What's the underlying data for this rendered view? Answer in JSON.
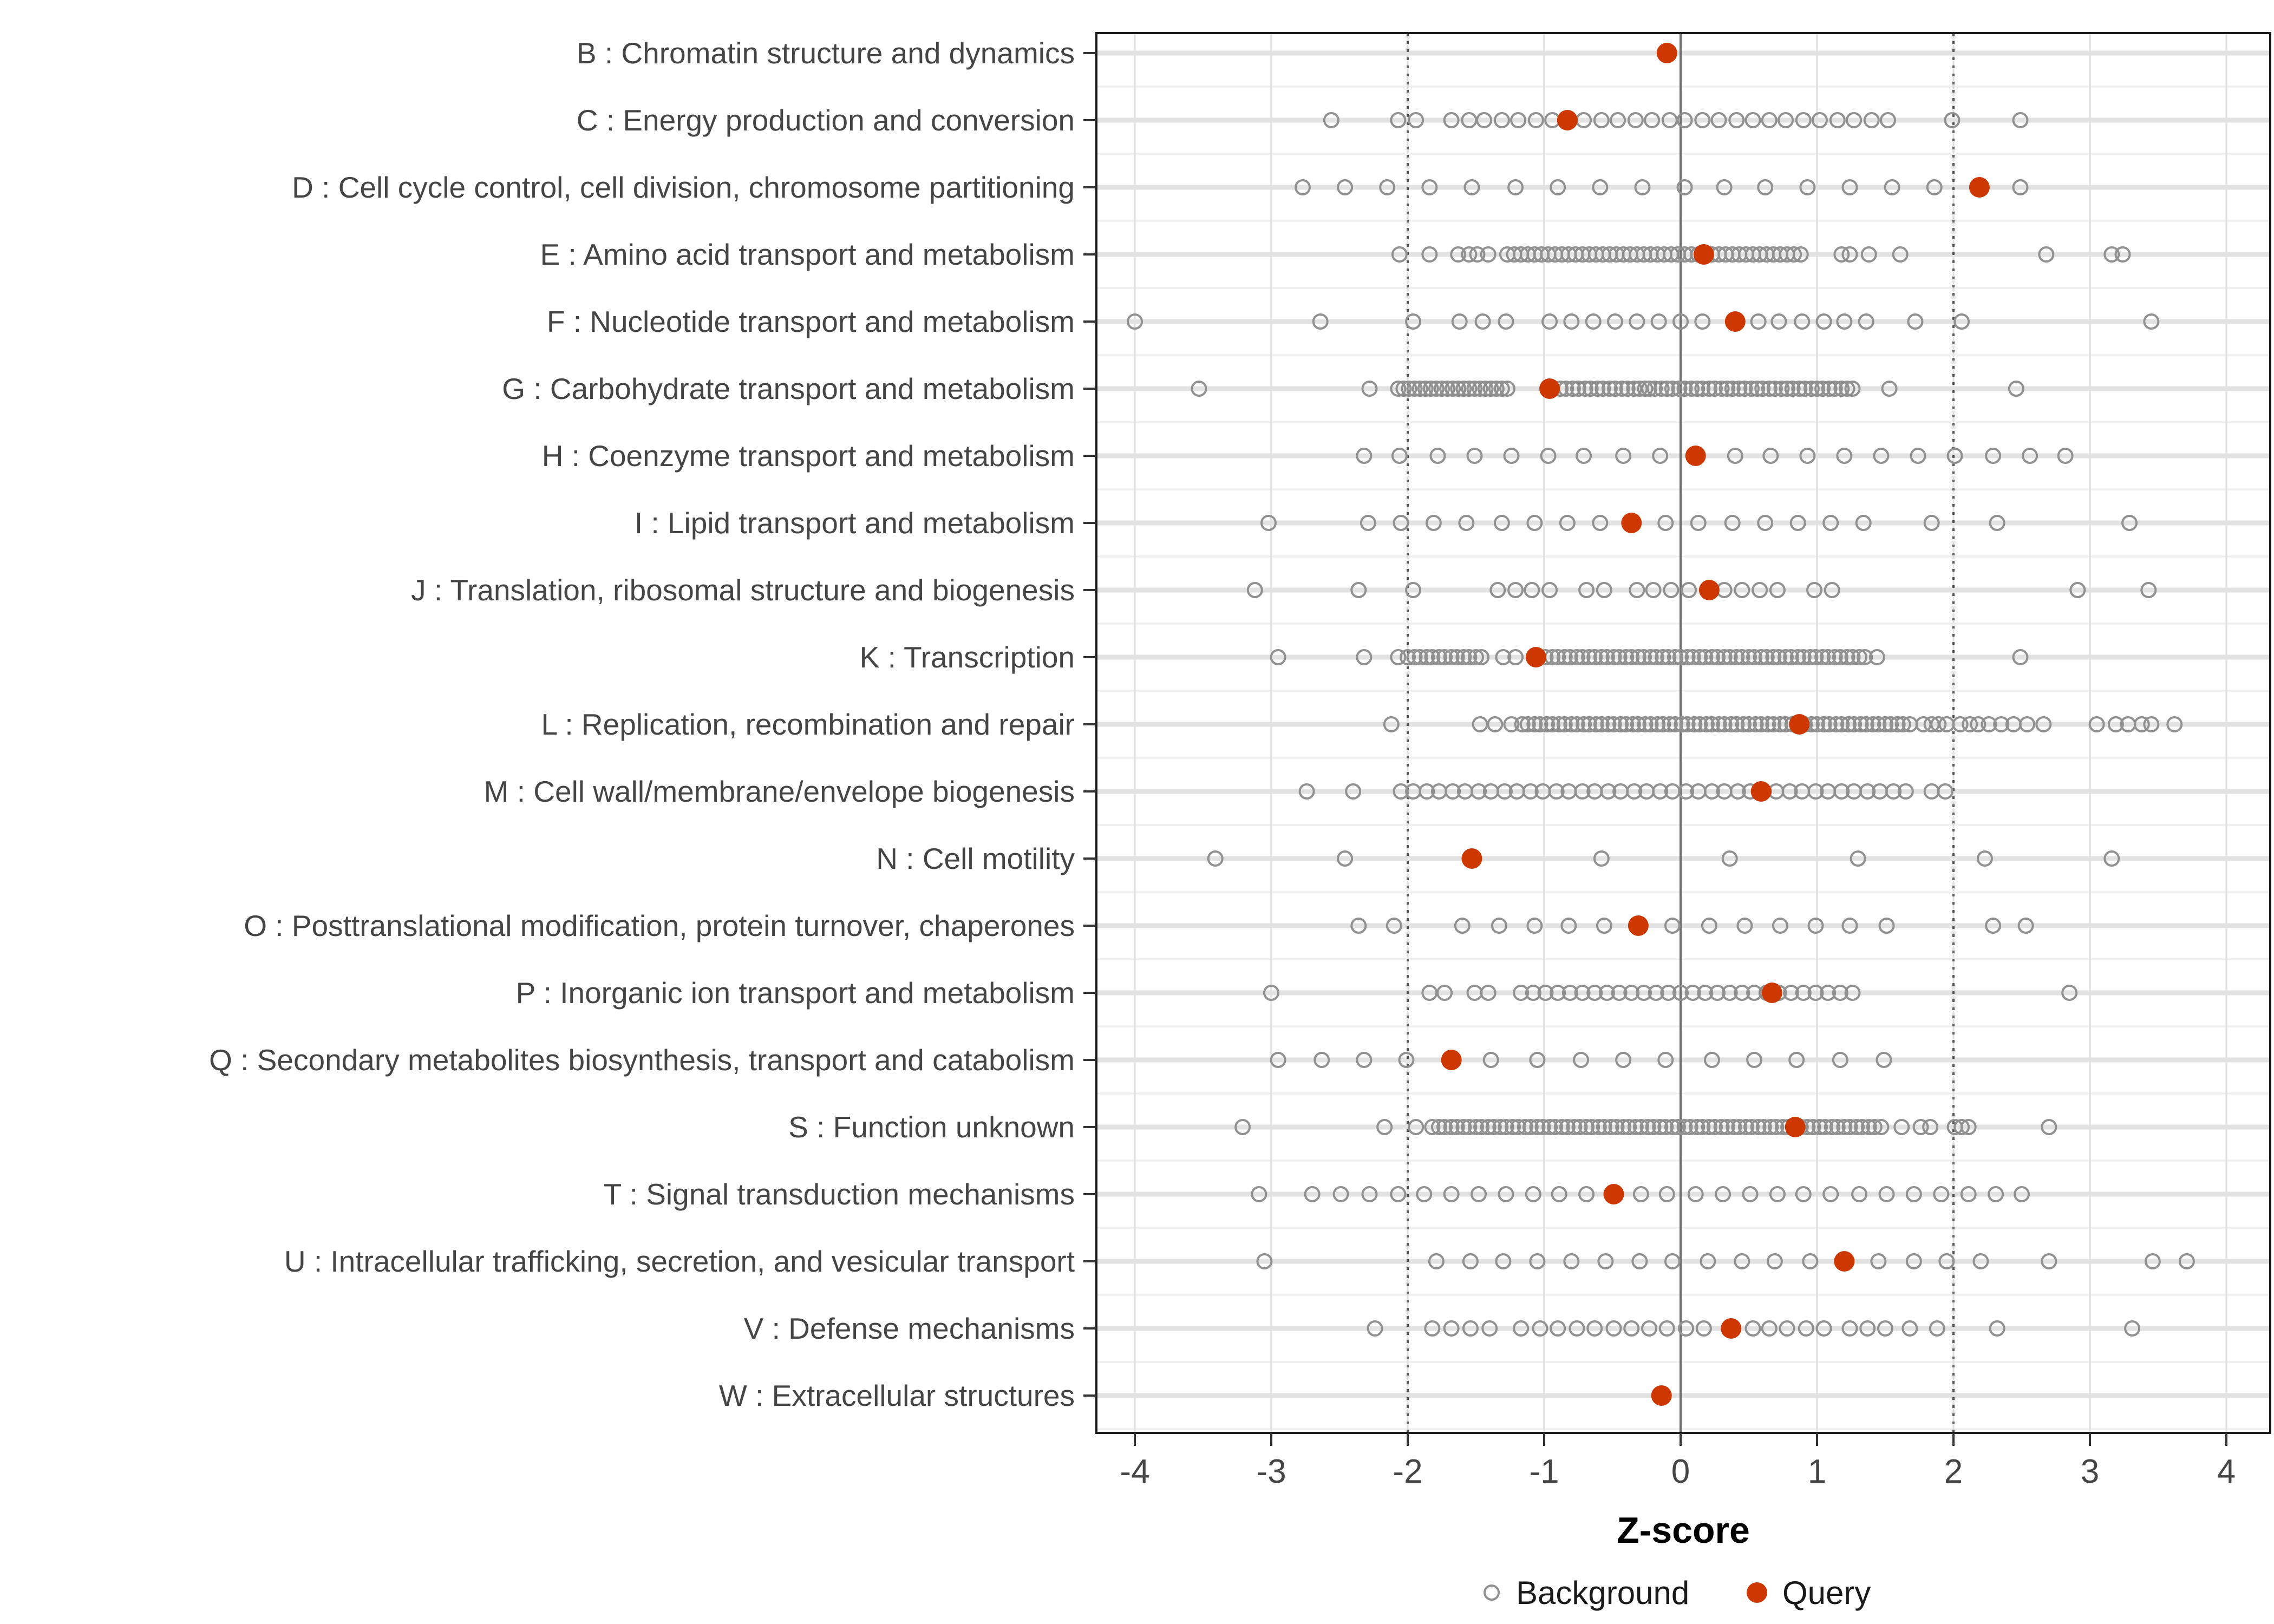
{
  "chart_data": {
    "type": "scatter",
    "title": "",
    "xlabel": "Z-score",
    "xlim": [
      -4.3,
      4.3
    ],
    "x_ticks": [
      -4,
      -3,
      -2,
      -1,
      0,
      1,
      2,
      3,
      4
    ],
    "grid": true,
    "reference_lines": {
      "solid_at": 0,
      "dashed_at": [
        -2,
        2
      ]
    },
    "legend": {
      "position": "bottom",
      "items": [
        {
          "label": "Background",
          "marker": "open-circle",
          "color": "#919191"
        },
        {
          "label": "Query",
          "marker": "filled-circle",
          "color": "#CD3700"
        }
      ]
    },
    "categories": [
      {
        "label": "B : Chromatin structure and dynamics",
        "query": -0.1,
        "background": []
      },
      {
        "label": "C : Energy production and conversion",
        "query": -0.83,
        "background": [
          -2.56,
          -2.07,
          -1.94,
          -1.68,
          -1.55,
          -1.44,
          -1.31,
          -1.19,
          -1.06,
          -0.94,
          -0.71,
          -0.58,
          -0.46,
          -0.33,
          -0.21,
          -0.08,
          0.03,
          0.16,
          0.28,
          0.41,
          0.53,
          0.65,
          0.77,
          0.9,
          1.02,
          1.15,
          1.27,
          1.4,
          1.52,
          1.99,
          2.49
        ]
      },
      {
        "label": "D : Cell cycle control, cell division, chromosome partitioning",
        "query": 2.19,
        "background": [
          -2.77,
          -2.46,
          -2.15,
          -1.84,
          -1.53,
          -1.21,
          -0.9,
          -0.59,
          -0.28,
          0.03,
          0.32,
          0.62,
          0.93,
          1.24,
          1.55,
          1.86,
          2.49
        ]
      },
      {
        "label": "E : Amino acid transport and metabolism",
        "query": 0.17,
        "background": [
          -2.06,
          -1.84,
          -1.63,
          -1.55,
          -1.49,
          -1.41,
          -1.27,
          -1.22,
          -1.17,
          -1.12,
          -1.07,
          -1.02,
          -0.97,
          -0.92,
          -0.87,
          -0.82,
          -0.77,
          -0.72,
          -0.67,
          -0.62,
          -0.57,
          -0.52,
          -0.47,
          -0.42,
          -0.37,
          -0.32,
          -0.27,
          -0.22,
          -0.17,
          -0.12,
          -0.07,
          -0.02,
          0.03,
          0.08,
          0.13,
          0.23,
          0.28,
          0.33,
          0.38,
          0.43,
          0.48,
          0.53,
          0.58,
          0.63,
          0.68,
          0.73,
          0.78,
          0.83,
          0.88,
          1.18,
          1.24,
          1.38,
          1.61,
          2.68,
          3.16,
          3.24
        ]
      },
      {
        "label": "F : Nucleotide transport and metabolism",
        "query": 0.4,
        "background": [
          -4.0,
          -2.64,
          -1.96,
          -1.62,
          -1.45,
          -1.28,
          -0.96,
          -0.8,
          -0.64,
          -0.48,
          -0.32,
          -0.16,
          0.0,
          0.16,
          0.57,
          0.72,
          0.89,
          1.05,
          1.2,
          1.36,
          1.72,
          2.06,
          3.45
        ]
      },
      {
        "label": "G : Carbohydrate transport and metabolism",
        "query": -0.96,
        "background": [
          -3.53,
          -2.28,
          -2.07,
          -2.03,
          -1.99,
          -1.95,
          -1.91,
          -1.87,
          -1.83,
          -1.79,
          -1.75,
          -1.71,
          -1.67,
          -1.63,
          -1.59,
          -1.55,
          -1.51,
          -1.47,
          -1.43,
          -1.39,
          -1.35,
          -1.31,
          -1.27,
          -0.88,
          -0.84,
          -0.79,
          -0.75,
          -0.7,
          -0.66,
          -0.61,
          -0.57,
          -0.52,
          -0.48,
          -0.43,
          -0.39,
          -0.34,
          -0.3,
          -0.26,
          -0.23,
          -0.19,
          -0.14,
          -0.1,
          -0.06,
          -0.01,
          0.03,
          0.08,
          0.12,
          0.16,
          0.21,
          0.25,
          0.3,
          0.34,
          0.38,
          0.43,
          0.47,
          0.52,
          0.56,
          0.6,
          0.65,
          0.69,
          0.74,
          0.78,
          0.82,
          0.87,
          0.91,
          0.96,
          1.0,
          1.04,
          1.09,
          1.13,
          1.18,
          1.22,
          1.26,
          1.53,
          2.46
        ]
      },
      {
        "label": "H : Coenzyme transport and metabolism",
        "query": 0.11,
        "background": [
          -2.32,
          -2.06,
          -1.78,
          -1.51,
          -1.24,
          -0.97,
          -0.71,
          -0.42,
          -0.15,
          0.4,
          0.66,
          0.93,
          1.2,
          1.47,
          1.74,
          2.01,
          2.29,
          2.56,
          2.82
        ]
      },
      {
        "label": "I : Lipid transport and metabolism",
        "query": -0.36,
        "background": [
          -3.02,
          -2.29,
          -2.05,
          -1.81,
          -1.57,
          -1.31,
          -1.07,
          -0.83,
          -0.59,
          -0.11,
          0.13,
          0.38,
          0.62,
          0.86,
          1.1,
          1.34,
          1.84,
          2.32,
          3.29
        ]
      },
      {
        "label": "J : Translation, ribosomal structure and biogenesis",
        "query": 0.21,
        "background": [
          -3.12,
          -2.36,
          -1.96,
          -1.34,
          -1.21,
          -1.09,
          -0.96,
          -0.69,
          -0.56,
          -0.32,
          -0.2,
          -0.07,
          0.06,
          0.32,
          0.45,
          0.58,
          0.71,
          0.98,
          1.11,
          2.91,
          3.43
        ]
      },
      {
        "label": "K : Transcription",
        "query": -1.06,
        "background": [
          -2.95,
          -2.32,
          -2.07,
          -2.0,
          -1.95,
          -1.91,
          -1.86,
          -1.82,
          -1.77,
          -1.73,
          -1.68,
          -1.64,
          -1.59,
          -1.55,
          -1.5,
          -1.46,
          -1.3,
          -1.21,
          -0.99,
          -0.94,
          -0.9,
          -0.85,
          -0.81,
          -0.76,
          -0.72,
          -0.67,
          -0.63,
          -0.58,
          -0.54,
          -0.49,
          -0.45,
          -0.4,
          -0.36,
          -0.31,
          -0.27,
          -0.22,
          -0.18,
          -0.13,
          -0.09,
          -0.04,
          0.0,
          0.05,
          0.09,
          0.14,
          0.18,
          0.23,
          0.27,
          0.32,
          0.36,
          0.41,
          0.45,
          0.5,
          0.54,
          0.59,
          0.63,
          0.68,
          0.72,
          0.77,
          0.81,
          0.86,
          0.9,
          0.95,
          0.99,
          1.04,
          1.08,
          1.13,
          1.17,
          1.22,
          1.26,
          1.31,
          1.35,
          1.44,
          2.49
        ]
      },
      {
        "label": "L : Replication, recombination and repair",
        "query": 0.87,
        "background": [
          -2.12,
          -1.47,
          -1.36,
          -1.24,
          -1.16,
          -1.12,
          -1.07,
          -1.03,
          -0.98,
          -0.94,
          -0.89,
          -0.85,
          -0.8,
          -0.76,
          -0.71,
          -0.67,
          -0.62,
          -0.58,
          -0.53,
          -0.49,
          -0.44,
          -0.4,
          -0.35,
          -0.31,
          -0.26,
          -0.22,
          -0.17,
          -0.13,
          -0.08,
          -0.04,
          0.01,
          0.05,
          0.1,
          0.14,
          0.19,
          0.23,
          0.28,
          0.32,
          0.37,
          0.41,
          0.46,
          0.5,
          0.55,
          0.59,
          0.64,
          0.68,
          0.73,
          0.77,
          0.82,
          0.91,
          0.96,
          1.0,
          1.05,
          1.09,
          1.14,
          1.18,
          1.23,
          1.27,
          1.32,
          1.36,
          1.41,
          1.45,
          1.5,
          1.54,
          1.59,
          1.63,
          1.68,
          1.78,
          1.84,
          1.89,
          1.95,
          2.05,
          2.12,
          2.18,
          2.26,
          2.35,
          2.44,
          2.54,
          2.66,
          3.05,
          3.19,
          3.28,
          3.38,
          3.45,
          3.62
        ]
      },
      {
        "label": "M : Cell wall/membrane/envelope biogenesis",
        "query": 0.59,
        "background": [
          -2.74,
          -2.4,
          -2.05,
          -1.96,
          -1.86,
          -1.77,
          -1.67,
          -1.58,
          -1.48,
          -1.39,
          -1.29,
          -1.2,
          -1.1,
          -1.01,
          -0.91,
          -0.82,
          -0.72,
          -0.63,
          -0.53,
          -0.44,
          -0.34,
          -0.25,
          -0.15,
          -0.06,
          0.04,
          0.13,
          0.23,
          0.32,
          0.42,
          0.51,
          0.61,
          0.7,
          0.8,
          0.89,
          0.99,
          1.08,
          1.18,
          1.27,
          1.37,
          1.46,
          1.56,
          1.65,
          1.84,
          1.94
        ]
      },
      {
        "label": "N : Cell motility",
        "query": -1.53,
        "background": [
          -3.41,
          -2.46,
          -0.58,
          0.36,
          1.3,
          2.23,
          3.16
        ]
      },
      {
        "label": "O : Posttranslational modification, protein turnover, chaperones",
        "query": -0.31,
        "background": [
          -2.36,
          -2.1,
          -1.6,
          -1.33,
          -1.07,
          -0.82,
          -0.56,
          -0.06,
          0.21,
          0.47,
          0.73,
          0.99,
          1.24,
          1.51,
          2.29,
          2.53
        ]
      },
      {
        "label": "P : Inorganic ion transport and metabolism",
        "query": 0.67,
        "background": [
          -3.0,
          -1.84,
          -1.73,
          -1.51,
          -1.41,
          -1.17,
          -1.08,
          -0.99,
          -0.9,
          -0.81,
          -0.72,
          -0.63,
          -0.54,
          -0.45,
          -0.36,
          -0.27,
          -0.18,
          -0.09,
          0.0,
          0.09,
          0.18,
          0.27,
          0.36,
          0.45,
          0.54,
          0.63,
          0.72,
          0.81,
          0.9,
          0.99,
          1.08,
          1.17,
          1.26,
          2.85
        ]
      },
      {
        "label": "Q : Secondary metabolites biosynthesis, transport and catabolism",
        "query": -1.68,
        "background": [
          -2.95,
          -2.63,
          -2.32,
          -2.01,
          -1.39,
          -1.05,
          -0.73,
          -0.42,
          -0.11,
          0.23,
          0.54,
          0.85,
          1.17,
          1.49
        ]
      },
      {
        "label": "S : Function unknown",
        "query": 0.84,
        "background": [
          -3.21,
          -2.17,
          -1.94,
          -1.82,
          -1.77,
          -1.73,
          -1.68,
          -1.64,
          -1.59,
          -1.55,
          -1.5,
          -1.46,
          -1.41,
          -1.37,
          -1.32,
          -1.28,
          -1.23,
          -1.19,
          -1.14,
          -1.1,
          -1.05,
          -1.01,
          -0.96,
          -0.92,
          -0.87,
          -0.83,
          -0.78,
          -0.74,
          -0.69,
          -0.65,
          -0.6,
          -0.56,
          -0.51,
          -0.47,
          -0.42,
          -0.38,
          -0.33,
          -0.29,
          -0.24,
          -0.2,
          -0.15,
          -0.11,
          -0.06,
          -0.02,
          0.03,
          0.07,
          0.12,
          0.16,
          0.21,
          0.25,
          0.3,
          0.34,
          0.39,
          0.43,
          0.48,
          0.52,
          0.57,
          0.61,
          0.66,
          0.7,
          0.75,
          0.79,
          0.88,
          0.93,
          0.97,
          1.02,
          1.06,
          1.11,
          1.15,
          1.2,
          1.24,
          1.29,
          1.33,
          1.38,
          1.42,
          1.47,
          1.62,
          1.76,
          1.83,
          2.01,
          2.06,
          2.11,
          2.7
        ]
      },
      {
        "label": "T : Signal transduction mechanisms",
        "query": -0.49,
        "background": [
          -3.09,
          -2.7,
          -2.49,
          -2.28,
          -2.07,
          -1.88,
          -1.68,
          -1.48,
          -1.28,
          -1.08,
          -0.89,
          -0.69,
          -0.29,
          -0.1,
          0.11,
          0.31,
          0.51,
          0.71,
          0.9,
          1.1,
          1.31,
          1.51,
          1.71,
          1.91,
          2.11,
          2.31,
          2.5
        ]
      },
      {
        "label": "U : Intracellular trafficking, secretion, and vesicular transport",
        "query": 1.2,
        "background": [
          -3.05,
          -1.79,
          -1.54,
          -1.3,
          -1.05,
          -0.8,
          -0.55,
          -0.3,
          -0.06,
          0.2,
          0.45,
          0.69,
          0.95,
          1.45,
          1.71,
          1.95,
          2.2,
          2.7,
          3.46,
          3.71
        ]
      },
      {
        "label": "V : Defense mechanisms",
        "query": 0.37,
        "background": [
          -2.24,
          -1.82,
          -1.68,
          -1.54,
          -1.4,
          -1.17,
          -1.03,
          -0.9,
          -0.76,
          -0.63,
          -0.49,
          -0.36,
          -0.23,
          -0.1,
          0.04,
          0.17,
          0.53,
          0.65,
          0.78,
          0.92,
          1.05,
          1.24,
          1.37,
          1.5,
          1.68,
          1.88,
          2.32,
          3.31
        ]
      },
      {
        "label": "W : Extracellular structures",
        "query": -0.14,
        "background": []
      }
    ]
  },
  "colors": {
    "query": "#CD3700",
    "background_stroke": "#919191",
    "grid_major": "#E2E2E2",
    "grid_minor": "#EFEFEF",
    "ref_dashed": "#5A5A5A",
    "ref_solid": "#6E6E6E",
    "panel_border": "#1A1A1A",
    "tick": "#333333",
    "text": "#454545",
    "axis_title": "#000000",
    "panel_bg": "#FFFFFF"
  }
}
